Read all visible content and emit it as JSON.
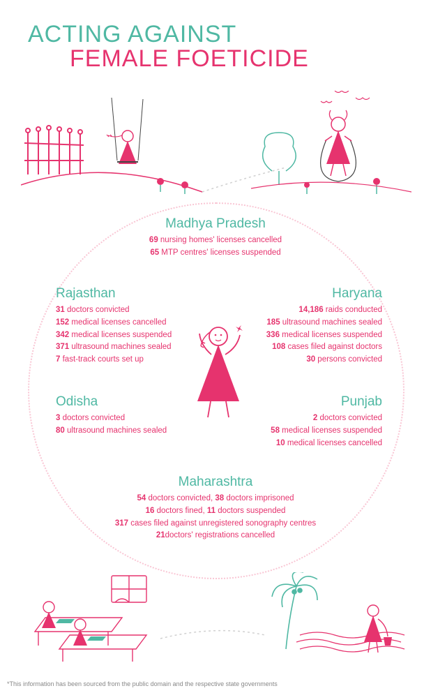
{
  "colors": {
    "teal": "#4fb8a3",
    "pink": "#e6336e",
    "light_pink_dot": "#f9c6d4",
    "text_gray": "#888888"
  },
  "title": {
    "line1": "ACTING AGAINST",
    "line2": "FEMALE FOETICIDE"
  },
  "states": {
    "mp": {
      "name": "Madhya Pradesh",
      "stats": [
        {
          "num": "69",
          "text": " nursing homes' licenses cancelled"
        },
        {
          "num": "65",
          "text": " MTP centres' licenses suspended"
        }
      ]
    },
    "rajasthan": {
      "name": "Rajasthan",
      "stats": [
        {
          "num": "31",
          "text": " doctors convicted"
        },
        {
          "num": "152",
          "text": " medical licenses cancelled"
        },
        {
          "num": "342",
          "text": " medical licenses suspended"
        },
        {
          "num": "371",
          "text": " ultrasound machines sealed"
        },
        {
          "num": "7",
          "text": " fast-track courts set up"
        }
      ]
    },
    "haryana": {
      "name": "Haryana",
      "stats": [
        {
          "num": "14,186",
          "text": " raids conducted"
        },
        {
          "num": "185",
          "text": " ultrasound machines sealed"
        },
        {
          "num": "336",
          "text": " medical licenses  suspended"
        },
        {
          "num": "108",
          "text": " cases filed against doctors"
        },
        {
          "num": "30",
          "text": " persons convicted"
        }
      ]
    },
    "odisha": {
      "name": "Odisha",
      "stats": [
        {
          "num": "3",
          "text": " doctors convicted"
        },
        {
          "num": "80",
          "text": " ultrasound machines sealed"
        }
      ]
    },
    "punjab": {
      "name": "Punjab",
      "stats": [
        {
          "num": "2",
          "text": " doctors convicted"
        },
        {
          "num": "58",
          "text": " medical licenses suspended"
        },
        {
          "num": "10",
          "text": " medical licenses cancelled"
        }
      ]
    },
    "maharashtra": {
      "name": "Maharashtra",
      "stats_special": [
        {
          "parts": [
            {
              "num": "54",
              "text": " doctors convicted, "
            },
            {
              "num": "38",
              "text": " doctors imprisoned"
            }
          ]
        },
        {
          "parts": [
            {
              "num": "16",
              "text": " doctors fined, "
            },
            {
              "num": "11",
              "text": " doctors suspended"
            }
          ]
        },
        {
          "parts": [
            {
              "num": "317",
              "text": " cases filed against unregistered sonography centres"
            }
          ]
        },
        {
          "parts": [
            {
              "num": "21",
              "text": "doctors' registrations cancelled"
            }
          ]
        }
      ]
    }
  },
  "footnote": "*This information has been sourced from the public domain and the respective state governments"
}
